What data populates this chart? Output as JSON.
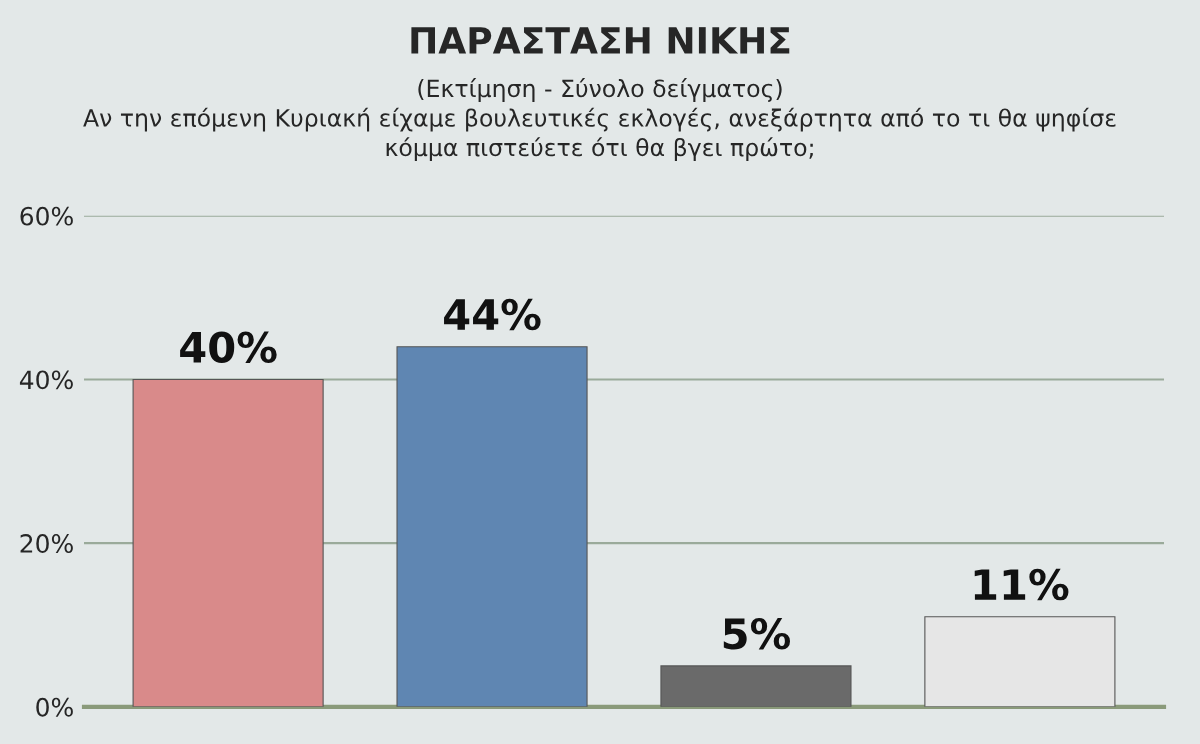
{
  "chart_data": {
    "type": "bar",
    "title": "ΠΑΡΑΣΤΑΣΗ ΝΙΚΗΣ",
    "subtitle": "(Εκτίμηση - Σύνολο δείγματος)\nΑν την επόμενη Κυριακή είχαμε βουλευτικές εκλογές, ανεξάρτητα από το τι θα ψηφίσε\nκόμμα πιστεύετε ότι θα βγει πρώτο;",
    "categories": [
      null,
      null,
      null,
      null
    ],
    "values": [
      40,
      44,
      5,
      11
    ],
    "colors": [
      "#d98a8a",
      "#5f86b2",
      "#6a6a6a",
      "#e6e6e6"
    ],
    "value_labels": [
      "40%",
      "44%",
      "5%",
      "11%"
    ],
    "ylim": [
      0,
      60
    ],
    "yticks": [
      {
        "value": 0,
        "label": "0%"
      },
      {
        "value": 20,
        "label": "20%"
      },
      {
        "value": 40,
        "label": "40%"
      },
      {
        "value": 60,
        "label": "60%"
      }
    ],
    "grid": "y"
  }
}
